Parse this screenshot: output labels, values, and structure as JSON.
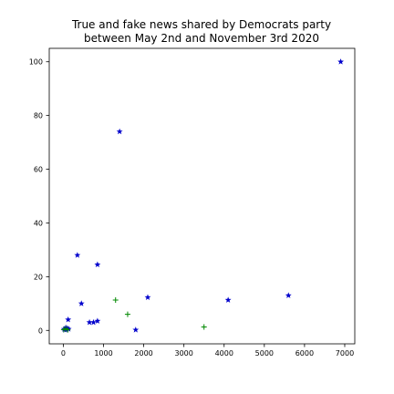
{
  "chart_data": {
    "type": "scatter",
    "title": [
      "True and fake news shared by Democrats party",
      "between May 2nd and November 3rd 2020"
    ],
    "xlabel": "",
    "ylabel": "",
    "xlim": [
      -350,
      7250
    ],
    "ylim": [
      -5,
      105
    ],
    "xticks": [
      0,
      1000,
      2000,
      3000,
      4000,
      5000,
      6000,
      7000
    ],
    "yticks": [
      0,
      20,
      40,
      60,
      80,
      100
    ],
    "grid": false,
    "series": [
      {
        "marker": "star",
        "color": "#0000cc",
        "points": [
          [
            6900,
            100
          ],
          [
            1400,
            74
          ],
          [
            350,
            28
          ],
          [
            850,
            24.5
          ],
          [
            450,
            10
          ],
          [
            2100,
            12.3
          ],
          [
            4100,
            11.3
          ],
          [
            5600,
            13
          ],
          [
            650,
            3
          ],
          [
            750,
            3
          ],
          [
            850,
            3.5
          ],
          [
            1800,
            0.2
          ],
          [
            120,
            4
          ],
          [
            20,
            0.5
          ],
          [
            60,
            1
          ],
          [
            80,
            0.3
          ],
          [
            100,
            0.8
          ],
          [
            130,
            0.5
          ],
          [
            40,
            0.2
          ]
        ]
      },
      {
        "marker": "plus",
        "color": "#008800",
        "points": [
          [
            1300,
            11.3
          ],
          [
            1600,
            6
          ],
          [
            3500,
            1.3
          ],
          [
            10,
            0.3
          ],
          [
            60,
            0.6
          ],
          [
            110,
            0.2
          ]
        ]
      }
    ]
  }
}
